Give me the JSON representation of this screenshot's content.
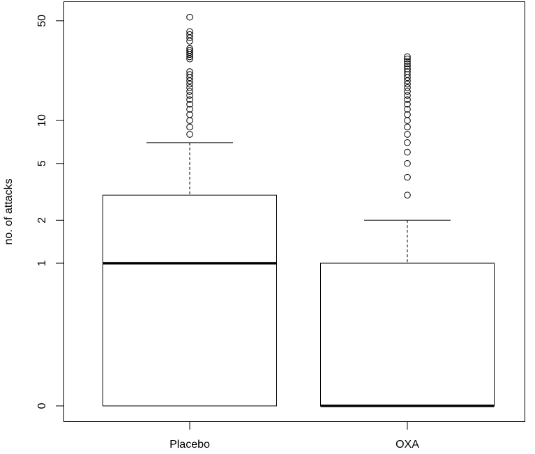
{
  "chart_data": {
    "type": "boxplot",
    "title": "",
    "xlabel": "",
    "ylabel": "no. of attacks",
    "y_scale": "log (0 shown below 1)",
    "y_ticks": [
      0,
      1,
      2,
      5,
      10,
      50
    ],
    "y_tick_labels": [
      "0",
      "1",
      "2",
      "5",
      "10",
      "50"
    ],
    "categories": [
      "Placebo",
      "OXA"
    ],
    "grid": false,
    "series": [
      {
        "category": "Placebo",
        "whisker_low": 0,
        "q1": 0,
        "median": 1,
        "q3": 3,
        "whisker_high": 7,
        "outliers": [
          8,
          9,
          10,
          11,
          12,
          13,
          14,
          15,
          16,
          17,
          18,
          19,
          20,
          21,
          22,
          27,
          28,
          29,
          30,
          31,
          32,
          36,
          38,
          40,
          42,
          53
        ]
      },
      {
        "category": "OXA",
        "whisker_low": 0,
        "q1": 0,
        "median": 0,
        "q3": 1,
        "whisker_high": 2,
        "outliers": [
          3,
          4,
          5,
          6,
          7,
          8,
          9,
          10,
          11,
          12,
          13,
          14,
          15,
          16,
          17,
          18,
          19,
          20,
          21,
          22,
          23,
          24,
          25,
          26,
          27,
          28
        ]
      }
    ],
    "colors": {
      "stroke": "#000000",
      "fill": "#ffffff"
    }
  }
}
